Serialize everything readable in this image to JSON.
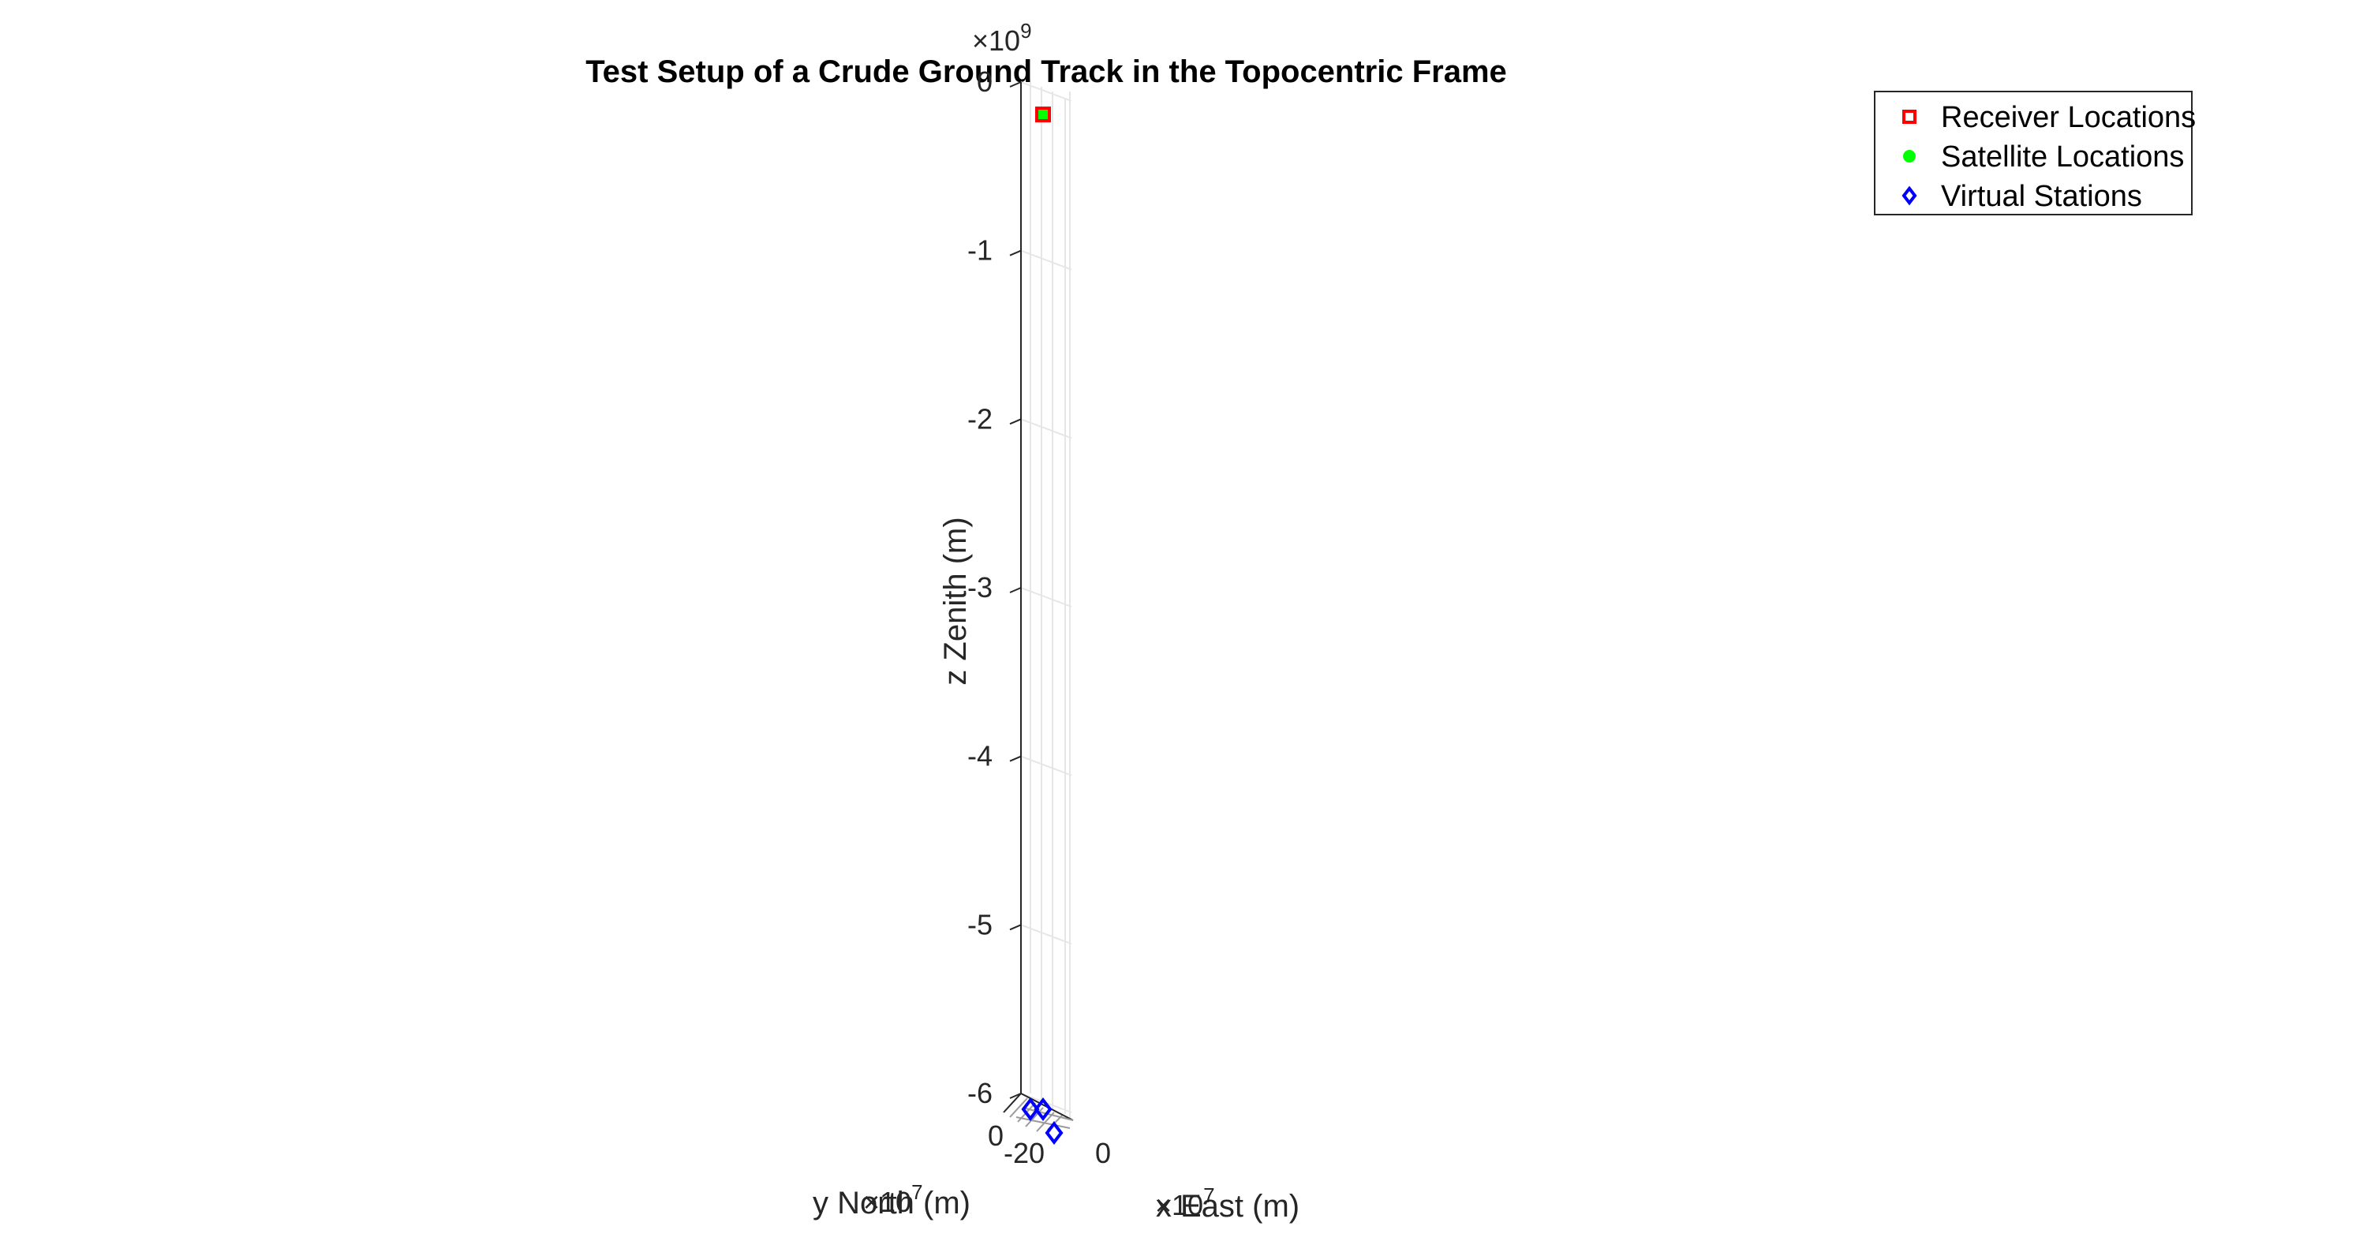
{
  "chart_data": {
    "type": "scatter",
    "title": "Test Setup of a Crude Ground Track in the Topocentric Frame",
    "xlabel": "x East (m)",
    "ylabel": "y North (m)",
    "zlabel": "z Zenith (m)",
    "z_exponent_label": "×10",
    "z_exponent_power": "9",
    "x_exponent_label": "×10",
    "x_exponent_power": "7",
    "y_exponent_label": "×10",
    "y_exponent_power": "7",
    "z_ticks": [
      "0",
      "-1",
      "-2",
      "-3",
      "-4",
      "-5",
      "-6"
    ],
    "z_tick_values": [
      0,
      -1,
      -2,
      -3,
      -4,
      -5,
      -6
    ],
    "x_ticks": [
      "0"
    ],
    "y_ticks": [
      "0",
      "-20"
    ],
    "zlim": [
      -6.1,
      0
    ],
    "grid": true,
    "legend_position": "top-right",
    "series": [
      {
        "name": "Receiver Locations",
        "marker": "square",
        "color": "#ff0000",
        "z": [
          -0.08
        ]
      },
      {
        "name": "Satellite Locations",
        "marker": "circle",
        "color": "#00ff00",
        "z": [
          -0.08
        ]
      },
      {
        "name": "Virtual Stations",
        "marker": "diamond",
        "color": "#0000ff",
        "z": [
          -6.08,
          -6.08,
          -6.22
        ]
      }
    ]
  }
}
